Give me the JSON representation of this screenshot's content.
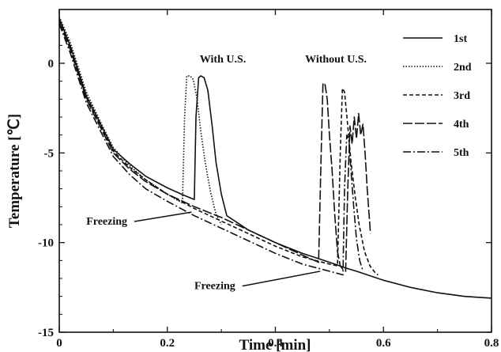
{
  "chart_data": {
    "type": "line",
    "xlabel": "Time  [min]",
    "ylabel": "Temperature  [℃]",
    "xlim": [
      0,
      0.8
    ],
    "ylim": [
      -15,
      3
    ],
    "xticks": [
      0,
      0.2,
      0.4,
      0.6,
      0.8
    ],
    "xtick_labels": [
      "0",
      "0.2",
      "0.4",
      "0.6",
      "0.8"
    ],
    "yticks": [
      -15,
      -10,
      -5,
      0
    ],
    "ytick_labels": [
      "-15",
      "-10",
      "-5",
      "0"
    ],
    "grid": false,
    "legend_position": "top-right",
    "annotations": [
      {
        "text": "With  U.S.",
        "x": 0.26,
        "y": 0.05
      },
      {
        "text": "Without  U.S.",
        "x": 0.455,
        "y": 0.05
      },
      {
        "text": "Freezing",
        "x": 0.05,
        "y": -9.0,
        "arrow_to": [
          0.245,
          -8.3
        ]
      },
      {
        "text": "Freezing",
        "x": 0.25,
        "y": -12.6,
        "arrow_to": [
          0.483,
          -11.6
        ]
      }
    ],
    "series": [
      {
        "name": "1st",
        "style": "solid",
        "x": [
          0,
          0.02,
          0.05,
          0.08,
          0.1,
          0.13,
          0.16,
          0.2,
          0.23,
          0.25,
          0.253,
          0.258,
          0.262,
          0.268,
          0.275,
          0.283,
          0.29,
          0.3,
          0.31,
          0.35,
          0.4,
          0.45,
          0.49,
          0.51,
          0.528,
          0.55,
          0.6,
          0.65,
          0.7,
          0.75,
          0.8
        ],
        "y": [
          2.5,
          1.0,
          -1.8,
          -3.6,
          -4.8,
          -5.6,
          -6.3,
          -6.95,
          -7.35,
          -7.6,
          -3.0,
          -0.8,
          -0.7,
          -0.8,
          -1.5,
          -3.5,
          -5.5,
          -7.3,
          -8.5,
          -9.3,
          -10.0,
          -10.6,
          -11.0,
          -11.2,
          -11.4,
          -11.6,
          -12.1,
          -12.5,
          -12.8,
          -13.0,
          -13.1
        ]
      },
      {
        "name": "2nd",
        "style": "dotted",
        "x": [
          0,
          0.02,
          0.05,
          0.08,
          0.1,
          0.13,
          0.16,
          0.2,
          0.228,
          0.232,
          0.236,
          0.242,
          0.248,
          0.255,
          0.262,
          0.27,
          0.28,
          0.29,
          0.3
        ],
        "y": [
          2.6,
          1.2,
          -1.6,
          -3.5,
          -4.7,
          -5.7,
          -6.5,
          -7.3,
          -7.8,
          -3.0,
          -0.7,
          -0.7,
          -0.9,
          -2.0,
          -3.8,
          -5.5,
          -7.2,
          -8.4,
          -9.0
        ]
      },
      {
        "name": "3rd",
        "style": "dashed",
        "x": [
          0,
          0.02,
          0.05,
          0.08,
          0.1,
          0.13,
          0.16,
          0.2,
          0.25,
          0.3,
          0.35,
          0.4,
          0.45,
          0.5,
          0.515,
          0.52,
          0.524,
          0.528,
          0.534,
          0.54,
          0.548,
          0.555,
          0.565,
          0.575,
          0.585,
          0.59
        ],
        "y": [
          2.4,
          0.9,
          -1.9,
          -3.7,
          -4.9,
          -5.8,
          -6.5,
          -7.3,
          -8.1,
          -8.8,
          -9.5,
          -10.2,
          -10.8,
          -11.2,
          -11.3,
          -5.0,
          -1.4,
          -1.6,
          -3.5,
          -5.5,
          -7.5,
          -9.0,
          -10.5,
          -11.3,
          -11.7,
          -11.8
        ]
      },
      {
        "name": "4th",
        "style": "longdash",
        "x": [
          0,
          0.02,
          0.05,
          0.08,
          0.1,
          0.13,
          0.16,
          0.2,
          0.25,
          0.3,
          0.35,
          0.4,
          0.45,
          0.48,
          0.484,
          0.488,
          0.492,
          0.496,
          0.5,
          0.505,
          0.51,
          0.515,
          0.52,
          0.525,
          0.53,
          0.534,
          0.538,
          0.542,
          0.546,
          0.55,
          0.554,
          0.558,
          0.562,
          0.566,
          0.57,
          0.576
        ],
        "y": [
          2.3,
          0.8,
          -2.0,
          -3.8,
          -5.0,
          -5.9,
          -6.6,
          -7.3,
          -8.0,
          -8.6,
          -9.3,
          -10.0,
          -10.7,
          -11.1,
          -6.0,
          -1.1,
          -1.2,
          -2.0,
          -4.0,
          -6.0,
          -8.5,
          -10.5,
          -11.3,
          -11.5,
          -11.6,
          -7.0,
          -3.5,
          -4.5,
          -3.0,
          -4.2,
          -2.8,
          -4.0,
          -3.4,
          -5.0,
          -7.0,
          -9.5
        ]
      },
      {
        "name": "5th",
        "style": "dashdot",
        "x": [
          0,
          0.02,
          0.05,
          0.08,
          0.1,
          0.13,
          0.16,
          0.2,
          0.25,
          0.3,
          0.35,
          0.4,
          0.45,
          0.5,
          0.525,
          0.528,
          0.532,
          0.536,
          0.54,
          0.545,
          0.55,
          0.556,
          0.562
        ],
        "y": [
          2.2,
          0.6,
          -2.2,
          -4.0,
          -5.2,
          -6.2,
          -7.0,
          -7.7,
          -8.5,
          -9.2,
          -9.9,
          -10.6,
          -11.2,
          -11.6,
          -11.8,
          -7.0,
          -4.0,
          -4.3,
          -6.0,
          -8.0,
          -9.8,
          -11.0,
          -11.6
        ]
      }
    ]
  }
}
